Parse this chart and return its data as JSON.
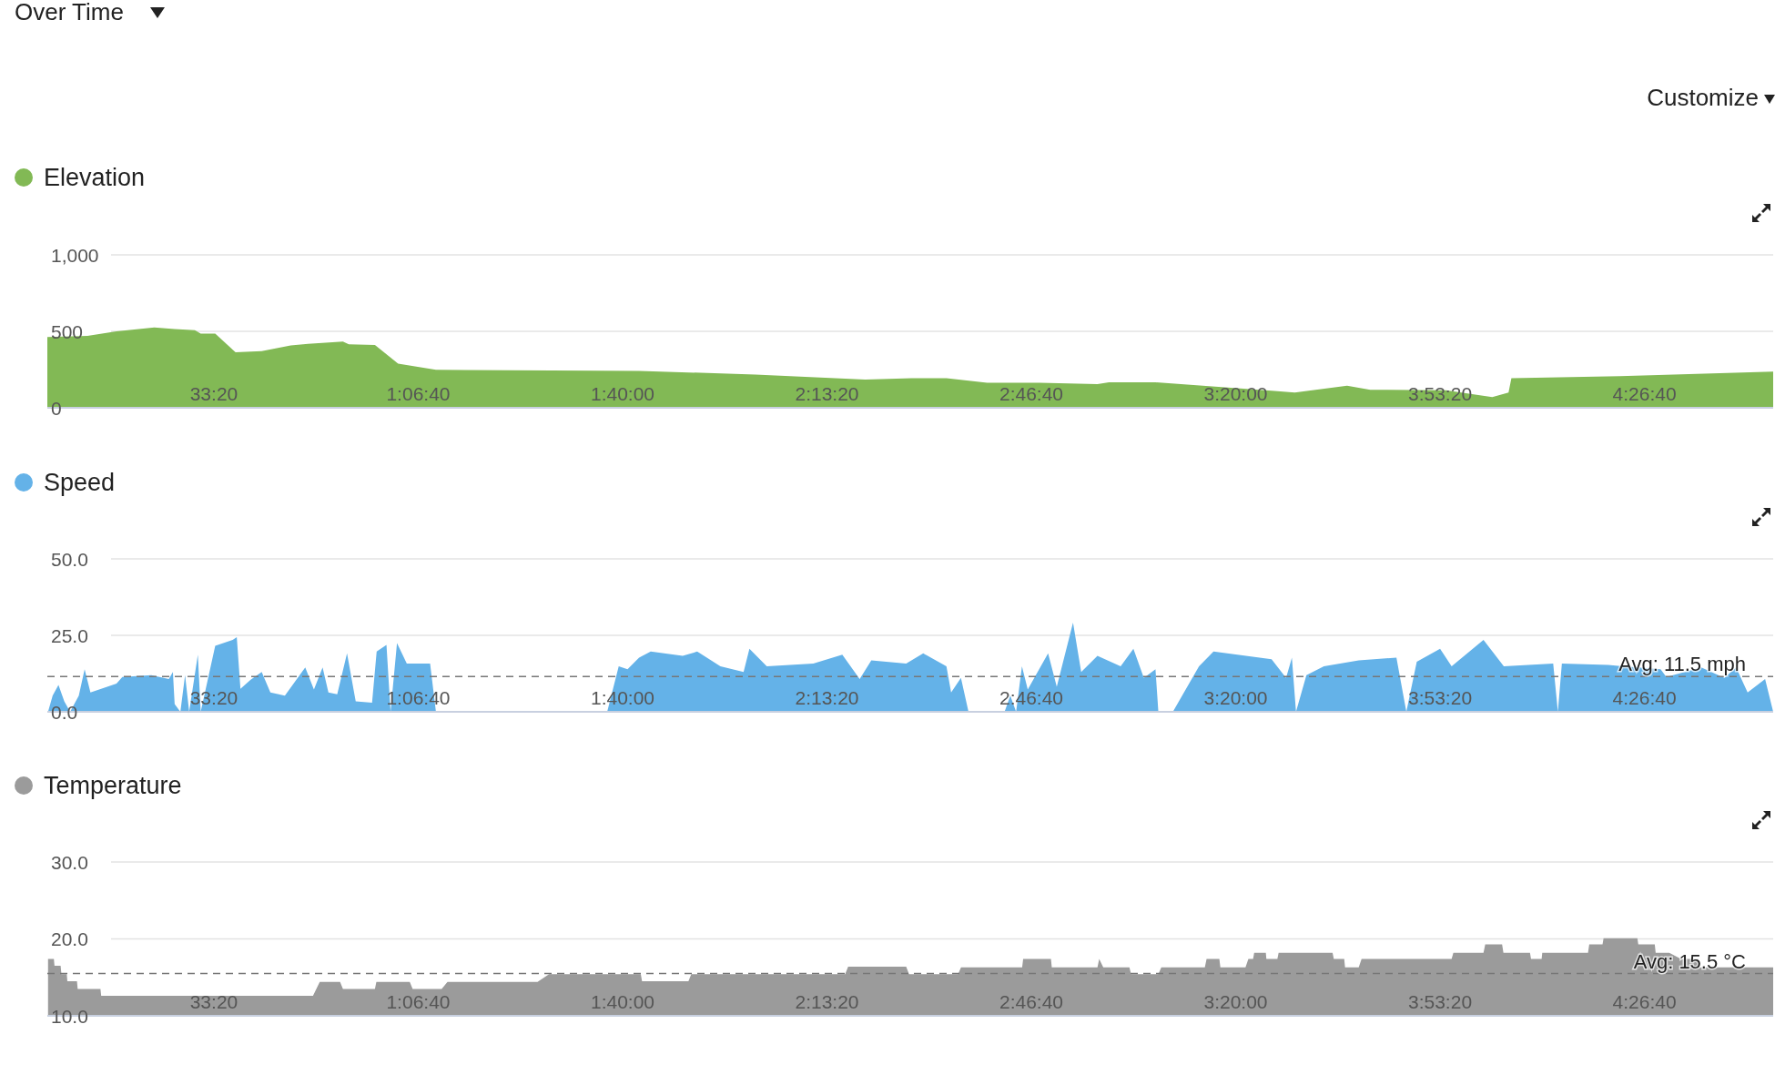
{
  "chart_data": [
    {
      "type": "area",
      "title": "Over Time",
      "annotations": [
        "Customize"
      ],
      "legend": "top left",
      "grid": "y",
      "xlim": [
        370,
        17260
      ],
      "ylim": [
        0,
        1000
      ],
      "yticks": [
        {
          "value": 0,
          "label": "0"
        },
        {
          "value": 500,
          "label": "500"
        },
        {
          "value": 1000,
          "label": "1,000"
        }
      ],
      "xticks": [
        {
          "value": 2000,
          "label": "33:20"
        },
        {
          "value": 4000,
          "label": "1:06:40"
        },
        {
          "value": 6000,
          "label": "1:40:00"
        },
        {
          "value": 8000,
          "label": "2:13:20"
        },
        {
          "value": 10000,
          "label": "2:46:40"
        },
        {
          "value": 12000,
          "label": "3:20:00"
        },
        {
          "value": 14000,
          "label": "3:53:20"
        },
        {
          "value": 16000,
          "label": "4:26:40"
        }
      ],
      "series": [
        {
          "name": "Elevation",
          "color": "#82b955",
          "x": [
            370,
            763,
            1047,
            1417,
            1616,
            1814,
            1871,
            2013,
            2212,
            2468,
            2752,
            2922,
            3263,
            3320,
            3576,
            3803,
            4173,
            6161,
            7298,
            8374,
            8829,
            9169,
            9567,
            10079,
            10647,
            10760,
            11215,
            12351,
            12578,
            13090,
            13317,
            14056,
            14511,
            14670,
            14698,
            15761,
            17260
          ],
          "values": [
            463,
            470,
            500,
            526,
            515,
            507,
            485,
            485,
            363,
            370,
            407,
            418,
            433,
            415,
            411,
            289,
            248,
            241,
            218,
            185,
            193,
            193,
            163,
            163,
            155,
            167,
            167,
            111,
            100,
            144,
            118,
            115,
            70,
            100,
            193,
            207,
            237
          ]
        }
      ]
    },
    {
      "type": "area",
      "legend": "top left",
      "grid": "y",
      "xlim": [
        370,
        17260
      ],
      "ylim": [
        0,
        50
      ],
      "yticks": [
        {
          "value": 0,
          "label": "0.0"
        },
        {
          "value": 25,
          "label": "25.0"
        },
        {
          "value": 50,
          "label": "50.0"
        }
      ],
      "xticks": [
        {
          "value": 2000,
          "label": "33:20"
        },
        {
          "value": 4000,
          "label": "1:06:40"
        },
        {
          "value": 6000,
          "label": "1:40:00"
        },
        {
          "value": 8000,
          "label": "2:13:20"
        },
        {
          "value": 10000,
          "label": "2:46:40"
        },
        {
          "value": 12000,
          "label": "3:20:00"
        },
        {
          "value": 14000,
          "label": "3:53:20"
        },
        {
          "value": 16000,
          "label": "4:26:40"
        }
      ],
      "ref_lines": [
        {
          "axis": "y",
          "value": 11.5,
          "label": "Avg: 11.5 mph",
          "color": "#777777",
          "line_style": "dashed"
        }
      ],
      "series": [
        {
          "name": "Speed",
          "color": "#64b2e8",
          "x": [
            377,
            422,
            479,
            536,
            593,
            678,
            735,
            792,
            1047,
            1104,
            1388,
            1559,
            1599,
            1616,
            1672,
            1718,
            1758,
            1843,
            1871,
            2013,
            2184,
            2224,
            2260,
            2360,
            2468,
            2553,
            2695,
            2894,
            2979,
            3064,
            3121,
            3207,
            3303,
            3388,
            3548,
            3593,
            3689,
            3729,
            3792,
            3888,
            4116,
            4173,
            5849,
            5962,
            6048,
            6161,
            6275,
            6588,
            6730,
            6957,
            7184,
            7241,
            7411,
            7866,
            8150,
            8320,
            8434,
            8775,
            8942,
            9169,
            9215,
            9311,
            9385,
            9738,
            9794,
            9851,
            9908,
            9965,
            10164,
            10249,
            10408,
            10488,
            10647,
            10874,
            10999,
            11101,
            11215,
            11243,
            11385,
            11641,
            11783,
            12351,
            12493,
            12550,
            12590,
            12692,
            12863,
            13204,
            13573,
            13670,
            13772,
            14000,
            14113,
            14425,
            14624,
            15107,
            15153,
            15192,
            15647,
            16158,
            16215,
            16556,
            16783,
            16897,
            17010,
            17181,
            17260
          ],
          "values": [
            0,
            5.3,
            8.8,
            3.4,
            0,
            5.3,
            13.9,
            6.3,
            9.2,
            11.4,
            12,
            10.7,
            13,
            2.5,
            0,
            12,
            0,
            18.7,
            0,
            21.6,
            23.5,
            24.4,
            7.5,
            10.5,
            13,
            6.3,
            5.3,
            14.5,
            7.3,
            14.5,
            6.3,
            5.7,
            19.1,
            3.4,
            3,
            19.7,
            21.9,
            0,
            22.5,
            15.8,
            15.8,
            0,
            0,
            14.9,
            13.9,
            17.7,
            19.7,
            18.3,
            19.7,
            14.9,
            13,
            20.6,
            14.9,
            15.8,
            18.7,
            10.7,
            16.8,
            15.8,
            19.1,
            14.9,
            6.3,
            11.1,
            0,
            0,
            5.3,
            0,
            14.9,
            7.3,
            19.1,
            8.2,
            29.2,
            13,
            18.3,
            14.9,
            20.6,
            11.1,
            13.9,
            0,
            0,
            14.9,
            19.7,
            17.2,
            11.1,
            17.7,
            0,
            12,
            14.9,
            16.8,
            17.7,
            0,
            16.4,
            20.6,
            14.9,
            23.5,
            14.9,
            15.8,
            0,
            15.8,
            15.3,
            13.9,
            11.4,
            14.5,
            11.1,
            14.5,
            6.3,
            10.7,
            0
          ]
        }
      ]
    },
    {
      "type": "area",
      "legend": "top left",
      "grid": "y",
      "xlim": [
        370,
        17260
      ],
      "ylim": [
        10,
        30
      ],
      "yticks": [
        {
          "value": 10,
          "label": "10.0"
        },
        {
          "value": 20,
          "label": "20.0"
        },
        {
          "value": 30,
          "label": "30.0"
        }
      ],
      "xticks": [
        {
          "value": 2000,
          "label": "33:20"
        },
        {
          "value": 4000,
          "label": "1:06:40"
        },
        {
          "value": 6000,
          "label": "1:40:00"
        },
        {
          "value": 8000,
          "label": "2:13:20"
        },
        {
          "value": 10000,
          "label": "2:46:40"
        },
        {
          "value": 12000,
          "label": "3:20:00"
        },
        {
          "value": 14000,
          "label": "3:53:20"
        },
        {
          "value": 16000,
          "label": "4:26:40"
        }
      ],
      "ref_lines": [
        {
          "axis": "y",
          "value": 15.5,
          "label": "Avg: 15.5 °C",
          "color": "#777777",
          "line_style": "dashed"
        }
      ],
      "series": [
        {
          "name": "Temperature",
          "color": "#9b9b9b",
          "x": [
            377,
            434,
            440,
            500,
            508,
            560,
            566,
            660,
            667,
            890,
            897,
            2970,
            3036,
            3235,
            3263,
            3576,
            3590,
            3917,
            3945,
            4229,
            4286,
            5167,
            5280,
            6178,
            6190,
            6644,
            6672,
            8178,
            8207,
            8775,
            8803,
            9283,
            9312,
            9910,
            9920,
            10192,
            10200,
            10647,
            10664,
            10704,
            10960,
            10976,
            11243,
            11272,
            11698,
            11715,
            11840,
            11850,
            12096,
            12124,
            12170,
            12181,
            12295,
            12300,
            12408,
            12420,
            12948,
            12960,
            13062,
            13070,
            13204,
            13232,
            14113,
            14130,
            14425,
            14442,
            14607,
            14620,
            14880,
            14890,
            14994,
            15000,
            15448,
            15460,
            15590,
            15600,
            15931,
            15940,
            16101,
            16110,
            16243,
            16357,
            16527,
            16540,
            17260
          ],
          "values": [
            17.4,
            17.4,
            16.5,
            16.5,
            15.4,
            15.4,
            14.5,
            14.5,
            13.5,
            13.5,
            12.6,
            12.6,
            14.4,
            14.4,
            13.5,
            13.5,
            14.4,
            14.4,
            13.5,
            13.5,
            14.4,
            14.4,
            15.4,
            15.4,
            14.5,
            14.5,
            15.4,
            15.4,
            16.4,
            16.4,
            15.4,
            15.4,
            16.3,
            16.3,
            17.4,
            17.4,
            16.3,
            16.3,
            17.4,
            16.3,
            16.3,
            15.4,
            15.4,
            16.3,
            16.3,
            17.4,
            17.4,
            16.3,
            16.3,
            17.4,
            17.4,
            18.2,
            18.2,
            17.4,
            17.4,
            18.2,
            18.2,
            17.4,
            17.4,
            16.3,
            16.3,
            17.4,
            17.4,
            18.2,
            18.2,
            19.3,
            19.3,
            18.2,
            18.2,
            17.4,
            17.4,
            18.2,
            18.2,
            19.3,
            19.3,
            20.1,
            20.1,
            19.3,
            19.3,
            18.2,
            18.2,
            17.4,
            17.4,
            16.3,
            16.3
          ]
        }
      ]
    }
  ]
}
